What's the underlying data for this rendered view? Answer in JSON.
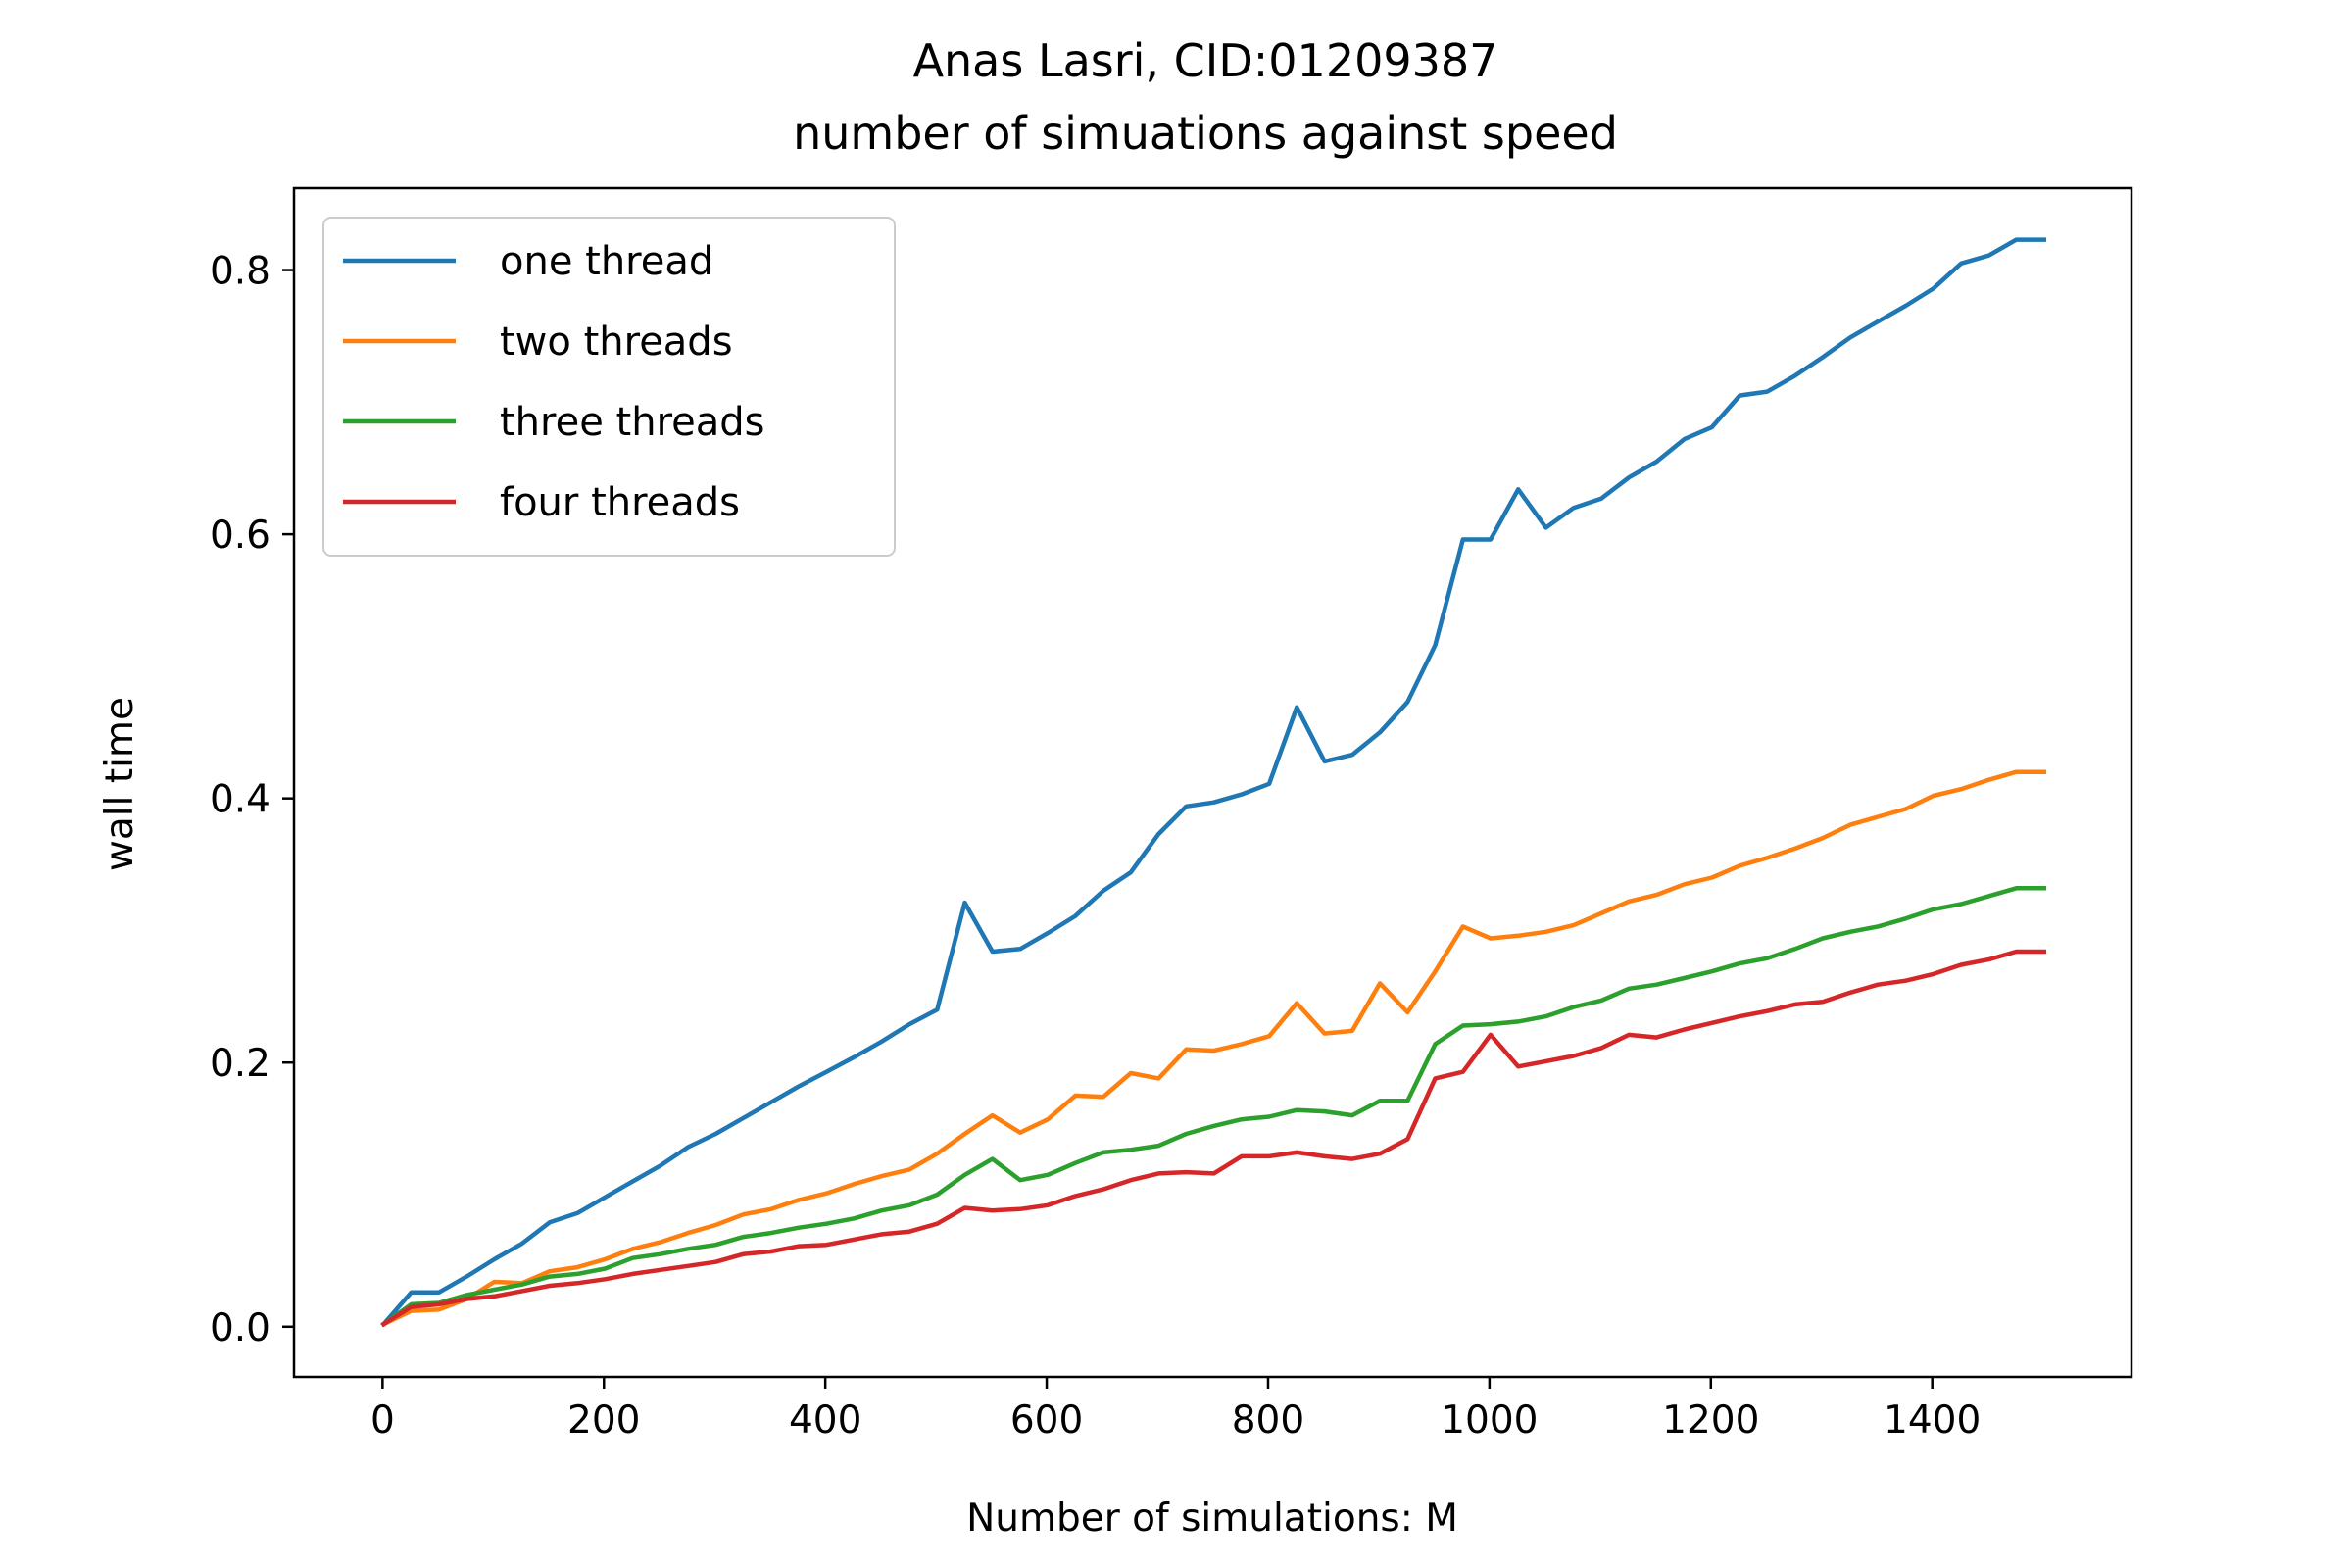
{
  "chart_data": {
    "type": "line",
    "title": "Anas Lasri, CID:01209387",
    "subtitle": "number of simuations against speed",
    "xlabel": "Number of simulations: M",
    "ylabel": "wall time",
    "xlim": [
      -80,
      1580
    ],
    "ylim": [
      -0.038,
      0.862
    ],
    "xticks": [
      0,
      200,
      400,
      600,
      800,
      1000,
      1200,
      1400
    ],
    "yticks": [
      0.0,
      0.2,
      0.4,
      0.6,
      0.8
    ],
    "xtick_labels": [
      "0",
      "200",
      "400",
      "600",
      "800",
      "1000",
      "1200",
      "1400"
    ],
    "ytick_labels": [
      "0.0",
      "0.2",
      "0.4",
      "0.6",
      "0.8"
    ],
    "grid": false,
    "legend_position": "top-left",
    "x": [
      1,
      26,
      51,
      76,
      101,
      126,
      151,
      176,
      201,
      226,
      251,
      276,
      301,
      326,
      351,
      376,
      401,
      426,
      451,
      476,
      501,
      526,
      551,
      576,
      601,
      626,
      651,
      676,
      701,
      726,
      751,
      776,
      801,
      826,
      851,
      876,
      901,
      926,
      951,
      976,
      1001,
      1026,
      1051,
      1076,
      1101,
      1126,
      1151,
      1176,
      1201,
      1226,
      1251,
      1276,
      1301,
      1326,
      1351,
      1376,
      1401,
      1426,
      1451,
      1476,
      1501
    ],
    "series": [
      {
        "name": "one thread",
        "color": "#1f77b4",
        "values": [
          0.002,
          0.026,
          0.026,
          0.038,
          0.051,
          0.063,
          0.079,
          0.086,
          0.098,
          0.11,
          0.122,
          0.136,
          0.146,
          0.158,
          0.17,
          0.182,
          0.193,
          0.204,
          0.216,
          0.229,
          0.24,
          0.321,
          0.284,
          0.286,
          0.298,
          0.311,
          0.33,
          0.344,
          0.373,
          0.394,
          0.397,
          0.403,
          0.411,
          0.469,
          0.428,
          0.433,
          0.45,
          0.473,
          0.516,
          0.596,
          0.596,
          0.634,
          0.605,
          0.62,
          0.627,
          0.643,
          0.655,
          0.672,
          0.681,
          0.705,
          0.708,
          0.72,
          0.734,
          0.749,
          0.761,
          0.773,
          0.786,
          0.805,
          0.811,
          0.823,
          0.823
        ]
      },
      {
        "name": "two threads",
        "color": "#ff7f0e",
        "values": [
          0.002,
          0.012,
          0.013,
          0.021,
          0.034,
          0.033,
          0.042,
          0.045,
          0.051,
          0.059,
          0.064,
          0.071,
          0.077,
          0.085,
          0.089,
          0.096,
          0.101,
          0.108,
          0.114,
          0.119,
          0.131,
          0.146,
          0.16,
          0.147,
          0.157,
          0.175,
          0.174,
          0.192,
          0.188,
          0.21,
          0.209,
          0.214,
          0.22,
          0.245,
          0.222,
          0.224,
          0.26,
          0.238,
          0.269,
          0.303,
          0.294,
          0.296,
          0.299,
          0.304,
          0.313,
          0.322,
          0.327,
          0.335,
          0.34,
          0.349,
          0.355,
          0.362,
          0.37,
          0.38,
          0.386,
          0.392,
          0.402,
          0.407,
          0.414,
          0.42,
          0.42
        ]
      },
      {
        "name": "three threads",
        "color": "#2ca02c",
        "values": [
          0.002,
          0.017,
          0.018,
          0.024,
          0.028,
          0.032,
          0.038,
          0.04,
          0.044,
          0.052,
          0.055,
          0.059,
          0.062,
          0.068,
          0.071,
          0.075,
          0.078,
          0.082,
          0.088,
          0.092,
          0.1,
          0.115,
          0.127,
          0.111,
          0.115,
          0.124,
          0.132,
          0.134,
          0.137,
          0.146,
          0.152,
          0.157,
          0.159,
          0.164,
          0.163,
          0.16,
          0.171,
          0.171,
          0.214,
          0.228,
          0.229,
          0.231,
          0.235,
          0.242,
          0.247,
          0.256,
          0.259,
          0.264,
          0.269,
          0.275,
          0.279,
          0.286,
          0.294,
          0.299,
          0.303,
          0.309,
          0.316,
          0.32,
          0.326,
          0.332,
          0.332
        ]
      },
      {
        "name": "four threads",
        "color": "#d62728",
        "values": [
          0.002,
          0.015,
          0.017,
          0.021,
          0.023,
          0.027,
          0.031,
          0.033,
          0.036,
          0.04,
          0.043,
          0.046,
          0.049,
          0.055,
          0.057,
          0.061,
          0.062,
          0.066,
          0.07,
          0.072,
          0.078,
          0.09,
          0.088,
          0.089,
          0.092,
          0.099,
          0.104,
          0.111,
          0.116,
          0.117,
          0.116,
          0.129,
          0.129,
          0.132,
          0.129,
          0.127,
          0.131,
          0.142,
          0.188,
          0.193,
          0.221,
          0.197,
          0.201,
          0.205,
          0.211,
          0.221,
          0.219,
          0.225,
          0.23,
          0.235,
          0.239,
          0.244,
          0.246,
          0.253,
          0.259,
          0.262,
          0.267,
          0.274,
          0.278,
          0.284,
          0.284
        ]
      }
    ]
  }
}
